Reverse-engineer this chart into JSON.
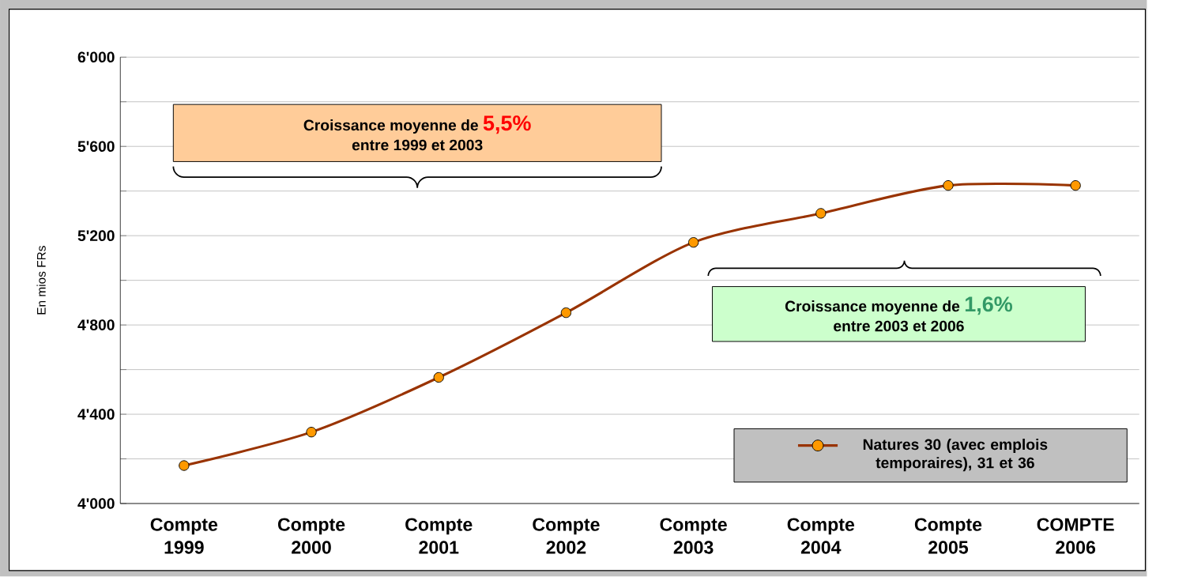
{
  "chart_data": {
    "type": "line",
    "ylabel": "En mios FRs",
    "categories": [
      "Compte 1999",
      "Compte 2000",
      "Compte 2001",
      "Compte 2002",
      "Compte 2003",
      "Compte 2004",
      "Compte 2005",
      "COMPTE 2006"
    ],
    "series": [
      {
        "name": "Natures 30 (avec emplois temporaires), 31 et 36",
        "color": "#993300",
        "values": [
          4170,
          4320,
          4565,
          4855,
          5170,
          5300,
          5425,
          5425
        ]
      }
    ],
    "ylim": [
      4000,
      6000
    ],
    "yticks": [
      {
        "value": 4000,
        "label": "4'000"
      },
      {
        "value": 4200,
        "label": null
      },
      {
        "value": 4400,
        "label": "4'400"
      },
      {
        "value": 4600,
        "label": null
      },
      {
        "value": 4800,
        "label": "4'800"
      },
      {
        "value": 5000,
        "label": null
      },
      {
        "value": 5200,
        "label": "5'200"
      },
      {
        "value": 5400,
        "label": null
      },
      {
        "value": 5600,
        "label": "5'600"
      },
      {
        "value": 5800,
        "label": null
      },
      {
        "value": 6000,
        "label": "6'000"
      }
    ],
    "grid": "y",
    "legend": "bottom right",
    "marker": "circle",
    "annotations": [
      "Croissance moyenne de",
      "5,5%",
      "entre 1999 et 2003",
      "Croissance moyenne de",
      "1,6%",
      "entre 2003 et 2006"
    ]
  }
}
